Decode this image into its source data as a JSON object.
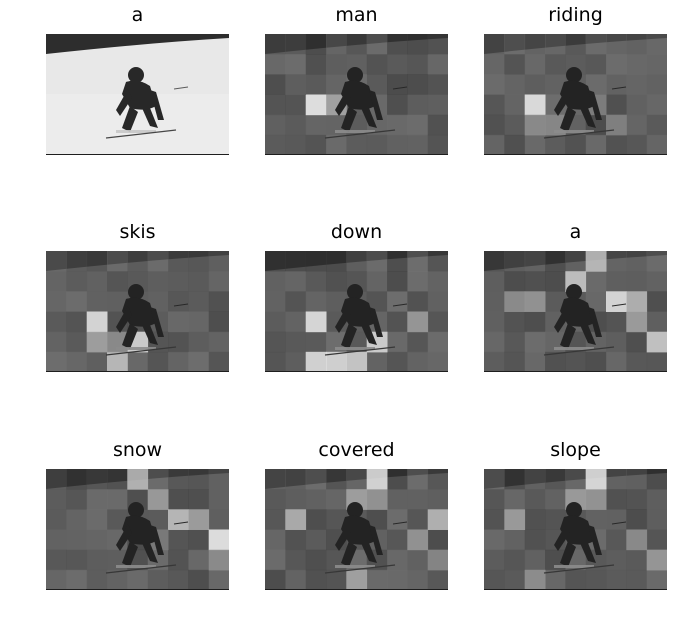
{
  "figure": {
    "panels": [
      {
        "word": "a"
      },
      {
        "word": "man"
      },
      {
        "word": "riding"
      },
      {
        "word": "skis"
      },
      {
        "word": "down"
      },
      {
        "word": "a"
      },
      {
        "word": "snow"
      },
      {
        "word": "covered"
      },
      {
        "word": "slope"
      }
    ]
  }
}
